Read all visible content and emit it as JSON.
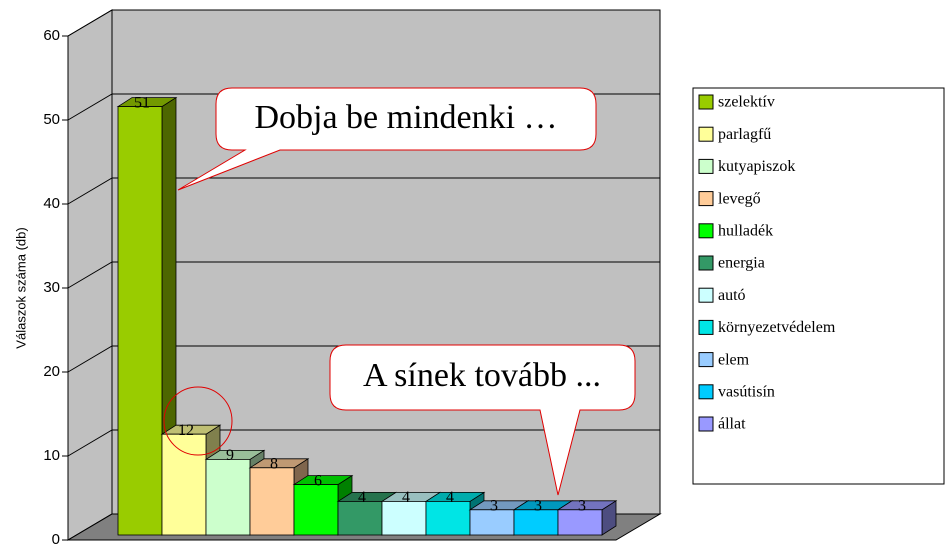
{
  "chart_data": {
    "type": "bar",
    "ylabel": "Válaszok száma (db)",
    "ylim": [
      0,
      60
    ],
    "yticks": [
      0,
      10,
      20,
      30,
      40,
      50,
      60
    ],
    "grid": true,
    "series": [
      {
        "name": "szelektív",
        "color": "#99cc00",
        "values": [
          51
        ]
      },
      {
        "name": "parlagfű",
        "color": "#ffff99",
        "values": [
          12
        ]
      },
      {
        "name": "kutyapiszok",
        "color": "#ccffcc",
        "values": [
          9
        ]
      },
      {
        "name": "levegő",
        "color": "#ffcc99",
        "values": [
          8
        ]
      },
      {
        "name": "hulladék",
        "color": "#00ff00",
        "values": [
          6
        ]
      },
      {
        "name": "energia",
        "color": "#339966",
        "values": [
          4
        ]
      },
      {
        "name": "autó",
        "color": "#ccffff",
        "values": [
          4
        ]
      },
      {
        "name": "környezetvédelem",
        "color": "#00e5e5",
        "values": [
          4
        ]
      },
      {
        "name": "elem",
        "color": "#99ccff",
        "values": [
          3
        ]
      },
      {
        "name": "vasútisín",
        "color": "#00ccff",
        "values": [
          3
        ]
      },
      {
        "name": "állat",
        "color": "#9999ff",
        "values": [
          3
        ]
      }
    ],
    "annotations": [
      "Dobja be mindenki …",
      "A sínek tovább ..."
    ]
  }
}
